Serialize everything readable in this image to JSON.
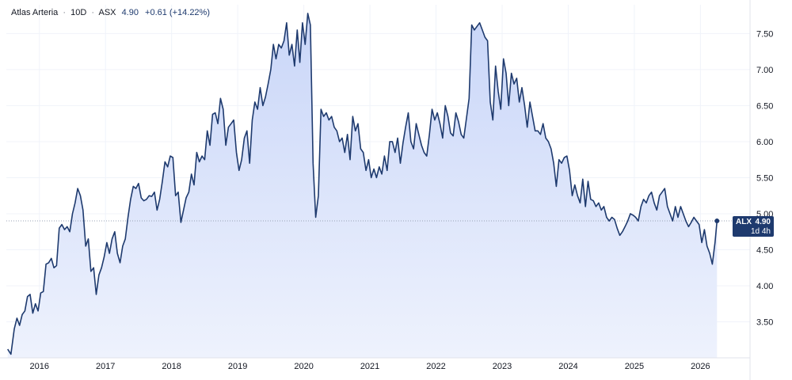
{
  "legend": {
    "name": "Atlas Arteria",
    "interval": "10D",
    "exchange": "ASX",
    "separator": "·",
    "last": "4.90",
    "change": "+0.61 (+14.22%)"
  },
  "price_tag": {
    "symbol": "ALX",
    "value": "4.90",
    "countdown": "1d 4h"
  },
  "colors": {
    "line": "#1e3a6e",
    "fill_top": "#c9d6f8",
    "fill_bottom": "#eef2fd",
    "grid": "#f0f3fa",
    "axis": "#e0e3eb"
  },
  "chart_data": {
    "type": "area",
    "ylim": [
      3.0,
      7.9
    ],
    "xlim": [
      2015.5,
      2026.75
    ],
    "grid": true,
    "y_ticks": [
      "3.50",
      "4.00",
      "4.50",
      "5.00",
      "5.50",
      "6.00",
      "6.50",
      "7.00",
      "7.50"
    ],
    "x_ticks": [
      "2016",
      "2017",
      "2018",
      "2019",
      "2020",
      "2021",
      "2022",
      "2023",
      "2024",
      "2025",
      "2026"
    ],
    "last_value": 4.9,
    "series": [
      {
        "points": [
          [
            2015.52,
            3.12
          ],
          [
            2015.57,
            3.05
          ],
          [
            2015.62,
            3.4
          ],
          [
            2015.66,
            3.55
          ],
          [
            2015.7,
            3.45
          ],
          [
            2015.74,
            3.6
          ],
          [
            2015.78,
            3.65
          ],
          [
            2015.82,
            3.85
          ],
          [
            2015.86,
            3.88
          ],
          [
            2015.9,
            3.62
          ],
          [
            2015.94,
            3.75
          ],
          [
            2015.98,
            3.65
          ],
          [
            2016.02,
            3.9
          ],
          [
            2016.06,
            3.92
          ],
          [
            2016.1,
            4.3
          ],
          [
            2016.14,
            4.32
          ],
          [
            2016.18,
            4.38
          ],
          [
            2016.22,
            4.25
          ],
          [
            2016.26,
            4.28
          ],
          [
            2016.3,
            4.8
          ],
          [
            2016.34,
            4.85
          ],
          [
            2016.38,
            4.78
          ],
          [
            2016.42,
            4.82
          ],
          [
            2016.46,
            4.75
          ],
          [
            2016.5,
            5.0
          ],
          [
            2016.54,
            5.15
          ],
          [
            2016.58,
            5.35
          ],
          [
            2016.62,
            5.25
          ],
          [
            2016.66,
            5.05
          ],
          [
            2016.7,
            4.55
          ],
          [
            2016.74,
            4.65
          ],
          [
            2016.78,
            4.2
          ],
          [
            2016.82,
            4.25
          ],
          [
            2016.86,
            3.88
          ],
          [
            2016.9,
            4.15
          ],
          [
            2016.94,
            4.25
          ],
          [
            2016.98,
            4.4
          ],
          [
            2017.02,
            4.6
          ],
          [
            2017.06,
            4.45
          ],
          [
            2017.1,
            4.65
          ],
          [
            2017.14,
            4.75
          ],
          [
            2017.18,
            4.45
          ],
          [
            2017.22,
            4.32
          ],
          [
            2017.26,
            4.55
          ],
          [
            2017.3,
            4.65
          ],
          [
            2017.34,
            4.95
          ],
          [
            2017.38,
            5.2
          ],
          [
            2017.42,
            5.38
          ],
          [
            2017.46,
            5.35
          ],
          [
            2017.5,
            5.42
          ],
          [
            2017.54,
            5.22
          ],
          [
            2017.58,
            5.18
          ],
          [
            2017.62,
            5.2
          ],
          [
            2017.66,
            5.25
          ],
          [
            2017.7,
            5.24
          ],
          [
            2017.74,
            5.3
          ],
          [
            2017.78,
            5.05
          ],
          [
            2017.82,
            5.2
          ],
          [
            2017.86,
            5.45
          ],
          [
            2017.9,
            5.72
          ],
          [
            2017.94,
            5.65
          ],
          [
            2017.98,
            5.8
          ],
          [
            2018.02,
            5.78
          ],
          [
            2018.06,
            5.25
          ],
          [
            2018.1,
            5.3
          ],
          [
            2018.14,
            4.88
          ],
          [
            2018.18,
            5.05
          ],
          [
            2018.22,
            5.22
          ],
          [
            2018.26,
            5.3
          ],
          [
            2018.3,
            5.55
          ],
          [
            2018.34,
            5.4
          ],
          [
            2018.38,
            5.85
          ],
          [
            2018.42,
            5.72
          ],
          [
            2018.46,
            5.8
          ],
          [
            2018.5,
            5.75
          ],
          [
            2018.54,
            6.15
          ],
          [
            2018.58,
            5.95
          ],
          [
            2018.62,
            6.38
          ],
          [
            2018.66,
            6.4
          ],
          [
            2018.7,
            6.25
          ],
          [
            2018.74,
            6.6
          ],
          [
            2018.78,
            6.45
          ],
          [
            2018.82,
            5.95
          ],
          [
            2018.86,
            6.2
          ],
          [
            2018.9,
            6.25
          ],
          [
            2018.94,
            6.3
          ],
          [
            2018.98,
            5.85
          ],
          [
            2019.02,
            5.6
          ],
          [
            2019.06,
            5.75
          ],
          [
            2019.1,
            6.05
          ],
          [
            2019.14,
            6.15
          ],
          [
            2019.18,
            5.7
          ],
          [
            2019.22,
            6.3
          ],
          [
            2019.26,
            6.55
          ],
          [
            2019.3,
            6.45
          ],
          [
            2019.34,
            6.75
          ],
          [
            2019.38,
            6.5
          ],
          [
            2019.42,
            6.62
          ],
          [
            2019.46,
            6.8
          ],
          [
            2019.5,
            7.0
          ],
          [
            2019.54,
            7.35
          ],
          [
            2019.58,
            7.15
          ],
          [
            2019.62,
            7.35
          ],
          [
            2019.66,
            7.3
          ],
          [
            2019.7,
            7.4
          ],
          [
            2019.74,
            7.65
          ],
          [
            2019.78,
            7.2
          ],
          [
            2019.82,
            7.35
          ],
          [
            2019.86,
            7.05
          ],
          [
            2019.9,
            7.55
          ],
          [
            2019.94,
            7.1
          ],
          [
            2019.98,
            7.65
          ],
          [
            2020.02,
            7.35
          ],
          [
            2020.06,
            7.78
          ],
          [
            2020.1,
            7.62
          ],
          [
            2020.14,
            5.7
          ],
          [
            2020.18,
            4.95
          ],
          [
            2020.22,
            5.25
          ],
          [
            2020.26,
            6.45
          ],
          [
            2020.3,
            6.35
          ],
          [
            2020.34,
            6.4
          ],
          [
            2020.38,
            6.3
          ],
          [
            2020.42,
            6.35
          ],
          [
            2020.46,
            6.2
          ],
          [
            2020.5,
            6.15
          ],
          [
            2020.54,
            6.0
          ],
          [
            2020.58,
            6.05
          ],
          [
            2020.62,
            5.85
          ],
          [
            2020.66,
            6.1
          ],
          [
            2020.7,
            5.75
          ],
          [
            2020.74,
            6.35
          ],
          [
            2020.78,
            6.15
          ],
          [
            2020.82,
            6.25
          ],
          [
            2020.86,
            5.9
          ],
          [
            2020.9,
            5.85
          ],
          [
            2020.94,
            5.6
          ],
          [
            2020.98,
            5.75
          ],
          [
            2021.02,
            5.5
          ],
          [
            2021.06,
            5.62
          ],
          [
            2021.1,
            5.5
          ],
          [
            2021.14,
            5.65
          ],
          [
            2021.18,
            5.55
          ],
          [
            2021.22,
            5.8
          ],
          [
            2021.26,
            5.6
          ],
          [
            2021.3,
            6.0
          ],
          [
            2021.34,
            6.0
          ],
          [
            2021.38,
            5.85
          ],
          [
            2021.42,
            6.05
          ],
          [
            2021.46,
            5.7
          ],
          [
            2021.5,
            5.98
          ],
          [
            2021.54,
            6.2
          ],
          [
            2021.58,
            6.4
          ],
          [
            2021.62,
            6.0
          ],
          [
            2021.66,
            5.9
          ],
          [
            2021.7,
            6.25
          ],
          [
            2021.74,
            6.1
          ],
          [
            2021.78,
            5.95
          ],
          [
            2021.82,
            5.85
          ],
          [
            2021.86,
            5.8
          ],
          [
            2021.9,
            6.1
          ],
          [
            2021.94,
            6.45
          ],
          [
            2021.98,
            6.3
          ],
          [
            2022.02,
            6.4
          ],
          [
            2022.06,
            6.25
          ],
          [
            2022.1,
            6.05
          ],
          [
            2022.14,
            6.5
          ],
          [
            2022.18,
            6.35
          ],
          [
            2022.22,
            6.12
          ],
          [
            2022.26,
            6.08
          ],
          [
            2022.3,
            6.4
          ],
          [
            2022.34,
            6.28
          ],
          [
            2022.38,
            6.1
          ],
          [
            2022.42,
            6.05
          ],
          [
            2022.46,
            6.32
          ],
          [
            2022.5,
            6.6
          ],
          [
            2022.54,
            7.62
          ],
          [
            2022.58,
            7.55
          ],
          [
            2022.62,
            7.6
          ],
          [
            2022.66,
            7.65
          ],
          [
            2022.7,
            7.55
          ],
          [
            2022.74,
            7.45
          ],
          [
            2022.78,
            7.4
          ],
          [
            2022.82,
            6.55
          ],
          [
            2022.86,
            6.3
          ],
          [
            2022.9,
            7.05
          ],
          [
            2022.94,
            6.7
          ],
          [
            2022.98,
            6.45
          ],
          [
            2023.02,
            7.15
          ],
          [
            2023.06,
            6.95
          ],
          [
            2023.1,
            6.5
          ],
          [
            2023.14,
            6.95
          ],
          [
            2023.18,
            6.8
          ],
          [
            2023.22,
            6.88
          ],
          [
            2023.26,
            6.55
          ],
          [
            2023.3,
            6.75
          ],
          [
            2023.34,
            6.5
          ],
          [
            2023.38,
            6.2
          ],
          [
            2023.42,
            6.55
          ],
          [
            2023.46,
            6.35
          ],
          [
            2023.5,
            6.15
          ],
          [
            2023.54,
            6.15
          ],
          [
            2023.58,
            6.1
          ],
          [
            2023.62,
            6.25
          ],
          [
            2023.66,
            6.05
          ],
          [
            2023.7,
            6.0
          ],
          [
            2023.74,
            5.9
          ],
          [
            2023.78,
            5.7
          ],
          [
            2023.82,
            5.38
          ],
          [
            2023.86,
            5.75
          ],
          [
            2023.9,
            5.7
          ],
          [
            2023.94,
            5.78
          ],
          [
            2023.98,
            5.8
          ],
          [
            2024.02,
            5.6
          ],
          [
            2024.06,
            5.25
          ],
          [
            2024.1,
            5.4
          ],
          [
            2024.14,
            5.25
          ],
          [
            2024.18,
            5.15
          ],
          [
            2024.22,
            5.48
          ],
          [
            2024.26,
            5.1
          ],
          [
            2024.3,
            5.45
          ],
          [
            2024.34,
            5.2
          ],
          [
            2024.38,
            5.18
          ],
          [
            2024.42,
            5.1
          ],
          [
            2024.46,
            5.15
          ],
          [
            2024.5,
            5.05
          ],
          [
            2024.54,
            5.1
          ],
          [
            2024.58,
            4.95
          ],
          [
            2024.62,
            4.9
          ],
          [
            2024.66,
            4.95
          ],
          [
            2024.7,
            4.92
          ],
          [
            2024.74,
            4.8
          ],
          [
            2024.78,
            4.7
          ],
          [
            2024.82,
            4.75
          ],
          [
            2024.86,
            4.82
          ],
          [
            2024.9,
            4.9
          ],
          [
            2024.94,
            5.0
          ],
          [
            2024.98,
            4.98
          ],
          [
            2025.02,
            4.95
          ],
          [
            2025.06,
            4.9
          ],
          [
            2025.1,
            5.1
          ],
          [
            2025.14,
            5.2
          ],
          [
            2025.18,
            5.15
          ],
          [
            2025.22,
            5.25
          ],
          [
            2025.26,
            5.3
          ],
          [
            2025.3,
            5.15
          ],
          [
            2025.34,
            5.05
          ],
          [
            2025.38,
            5.25
          ],
          [
            2025.42,
            5.3
          ],
          [
            2025.46,
            5.35
          ],
          [
            2025.5,
            5.1
          ],
          [
            2025.54,
            5.0
          ],
          [
            2025.58,
            4.9
          ],
          [
            2025.62,
            5.1
          ],
          [
            2025.66,
            4.95
          ],
          [
            2025.7,
            5.1
          ],
          [
            2025.74,
            5.0
          ],
          [
            2025.78,
            4.9
          ],
          [
            2025.82,
            4.82
          ],
          [
            2025.86,
            4.88
          ],
          [
            2025.9,
            4.95
          ],
          [
            2025.94,
            4.9
          ],
          [
            2025.98,
            4.85
          ],
          [
            2026.02,
            4.6
          ],
          [
            2026.06,
            4.78
          ],
          [
            2026.1,
            4.55
          ],
          [
            2026.14,
            4.45
          ],
          [
            2026.18,
            4.3
          ],
          [
            2026.22,
            4.6
          ],
          [
            2026.25,
            4.9
          ]
        ]
      }
    ]
  }
}
